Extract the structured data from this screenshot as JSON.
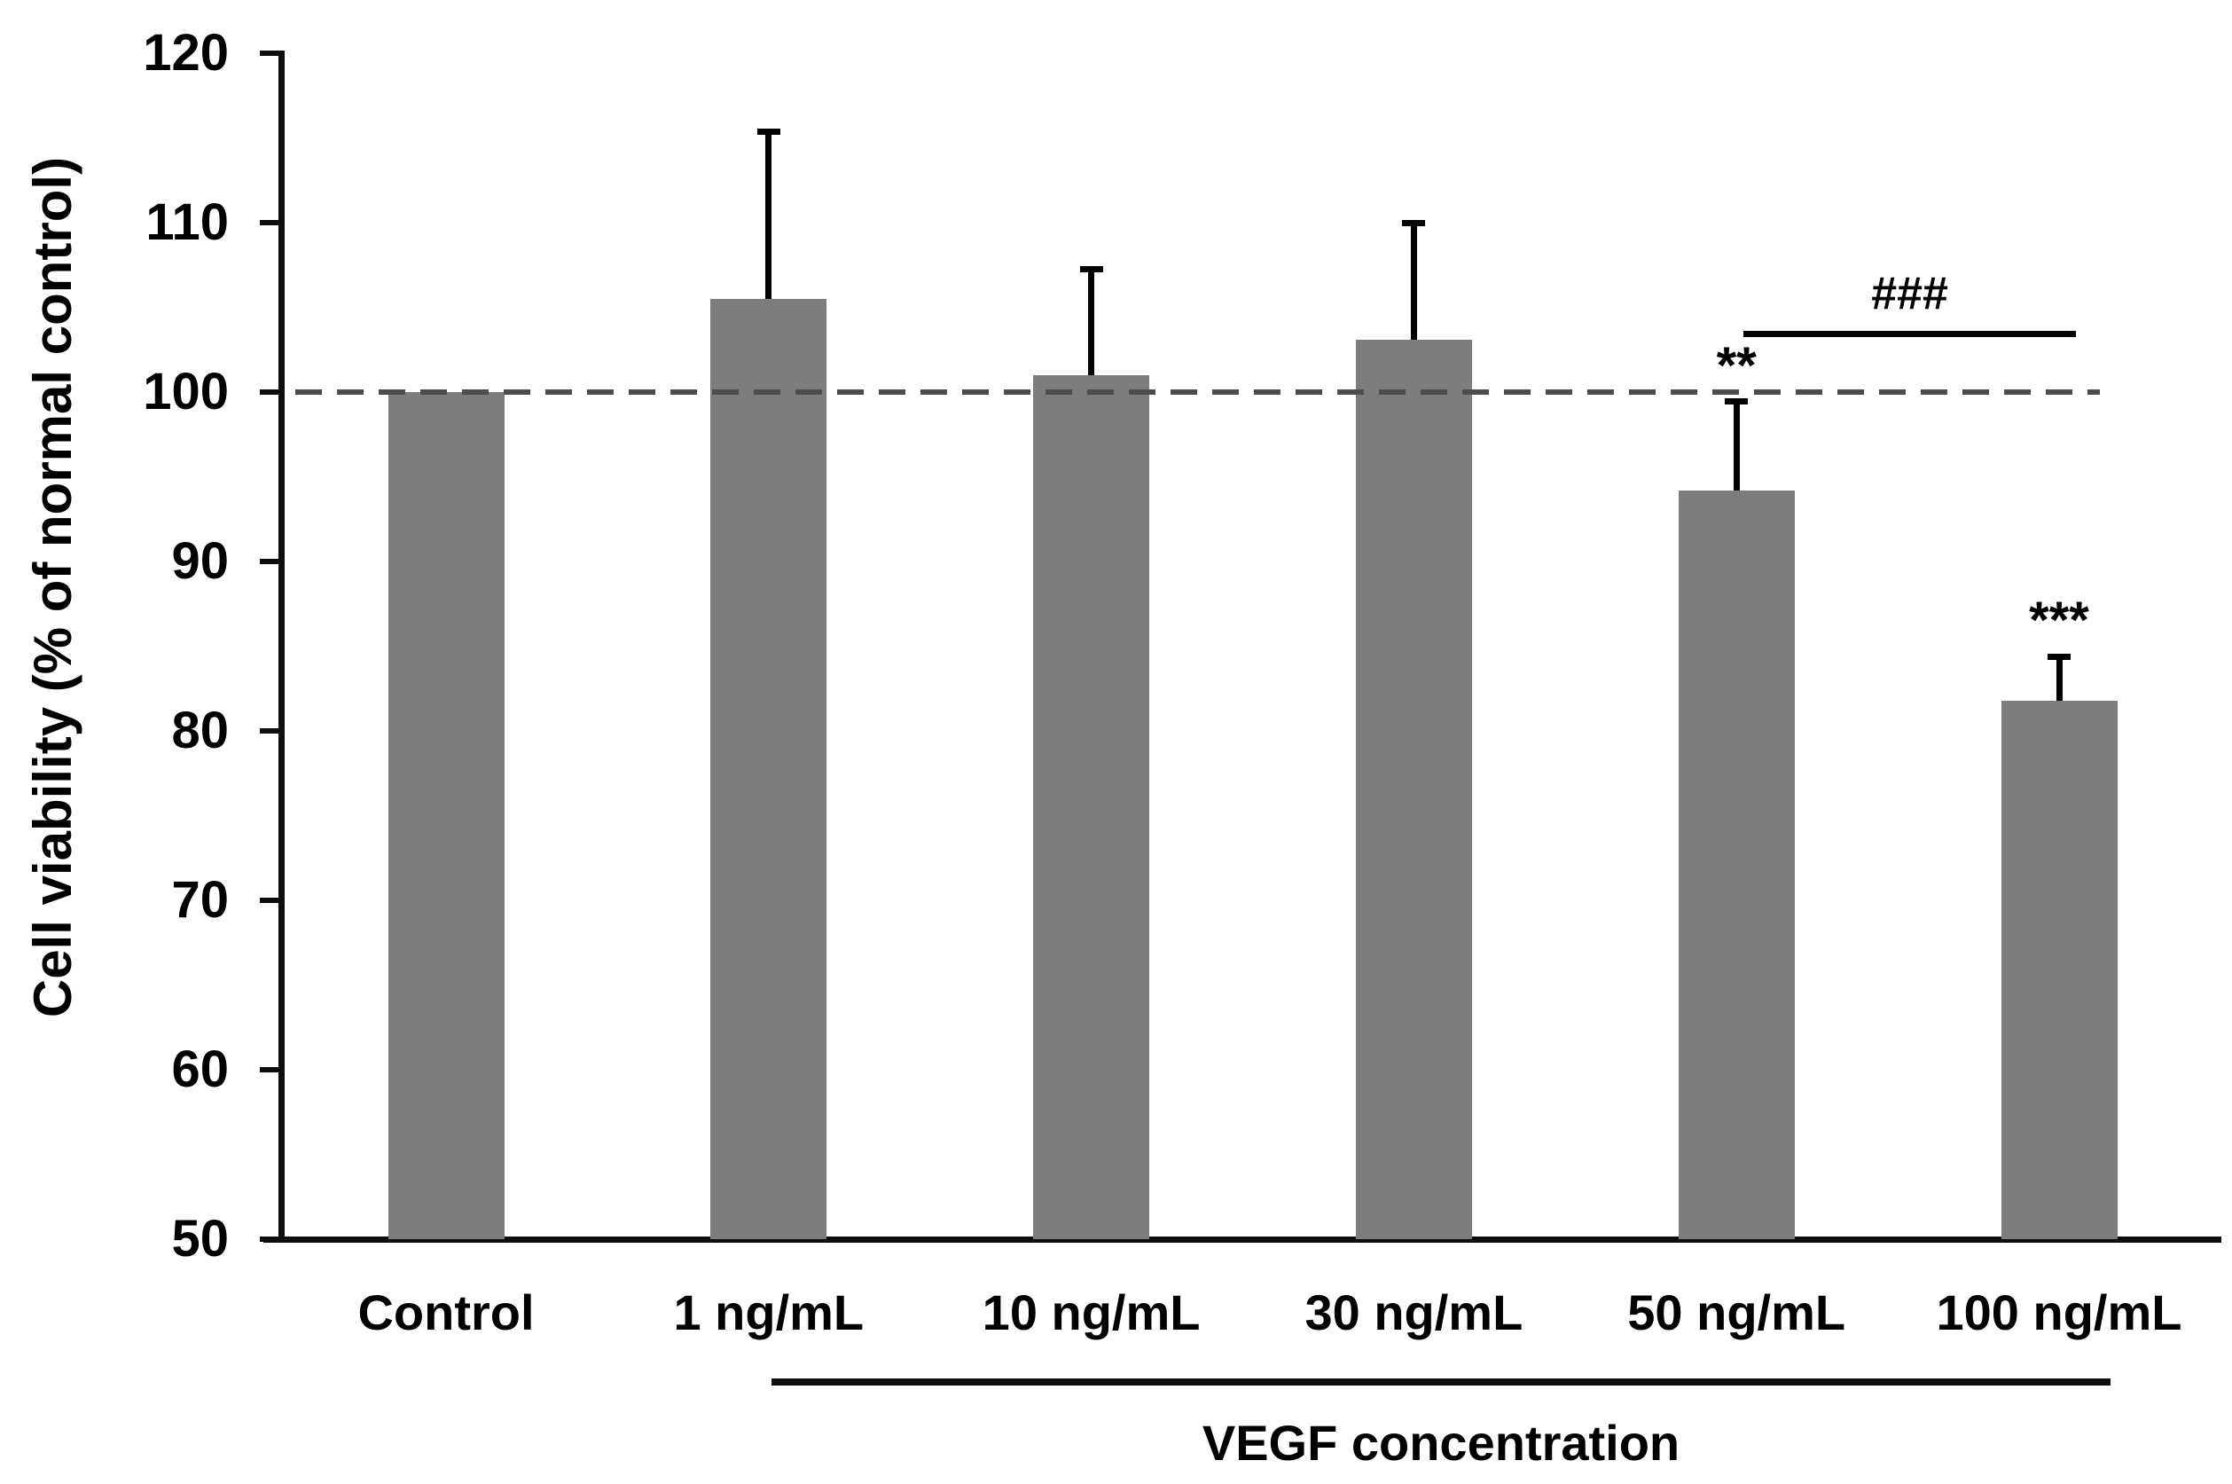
{
  "chart_data": {
    "type": "bar",
    "title": "",
    "categories": [
      "Control",
      "1 ng/mL",
      "10 ng/mL",
      "30 ng/mL",
      "50 ng/mL",
      "100 ng/mL"
    ],
    "values": [
      100.0,
      105.5,
      101.0,
      103.1,
      94.2,
      81.8
    ],
    "error_plus": [
      0,
      9.9,
      6.3,
      6.9,
      5.3,
      2.6
    ],
    "ylabel": "Cell viability (% of normal control)",
    "xlabel": "",
    "group_axis_label": "VEGF concentration",
    "group_span": {
      "from": "1 ng/mL",
      "to": "100 ng/mL"
    },
    "ylim": [
      50,
      120
    ],
    "yticks": [
      50,
      60,
      70,
      80,
      90,
      100,
      110,
      120
    ],
    "grid": false,
    "legend": false,
    "bar_color": "#7d7d7d",
    "axis_color": "#0d0d0d",
    "reference_line": {
      "y": 100,
      "style": "dashed",
      "color": "#4d4d4d"
    },
    "annotations": [
      {
        "label": "**",
        "category": "50 ng/mL",
        "category_index": 4,
        "y": 101.5
      },
      {
        "label": "***",
        "category": "100 ng/mL",
        "category_index": 5,
        "y": 86.5
      }
    ],
    "bracket": {
      "label": "###",
      "from": "50 ng/mL",
      "from_index": 4,
      "to": "100 ng/mL",
      "to_index": 5,
      "line_y": 103.4,
      "label_y": 105.8
    }
  }
}
